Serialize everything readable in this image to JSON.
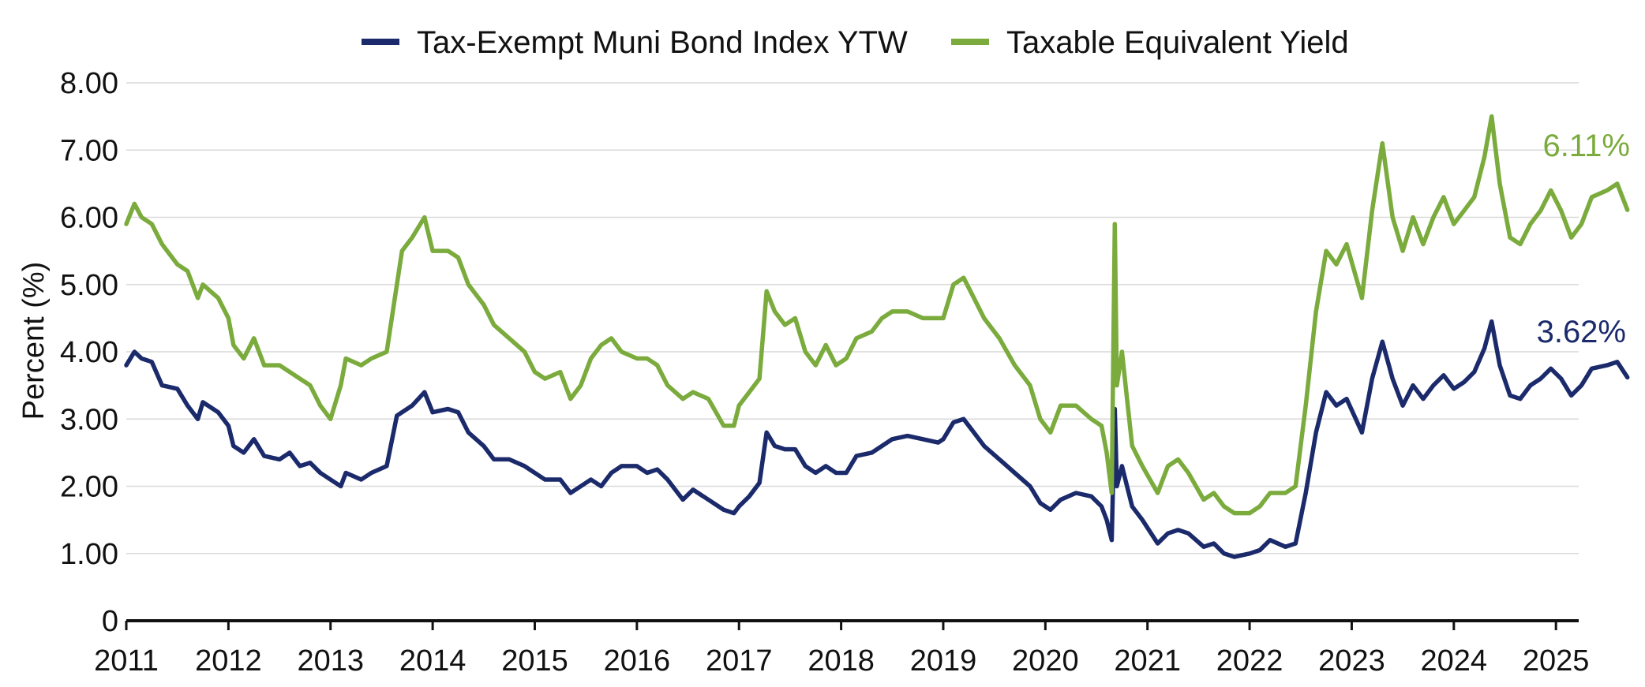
{
  "chart_data": {
    "type": "line",
    "title": "",
    "ylabel": "Percent (%)",
    "xlabel": "",
    "ylim": [
      0,
      8
    ],
    "xlim": [
      2011,
      2025.3
    ],
    "grid": true,
    "legend_position": "top-center",
    "y_ticks": [
      0,
      1,
      2,
      3,
      4,
      5,
      6,
      7,
      8
    ],
    "y_tick_labels": [
      "0",
      "1.00",
      "2.00",
      "3.00",
      "4.00",
      "5.00",
      "6.00",
      "7.00",
      "8.00"
    ],
    "x_ticks": [
      2011,
      2012,
      2013,
      2014,
      2015,
      2016,
      2017,
      2018,
      2019,
      2020,
      2021,
      2022,
      2023,
      2024,
      2025
    ],
    "x_tick_labels": [
      "2011",
      "2012",
      "2013",
      "2014",
      "2015",
      "2016",
      "2017",
      "2018",
      "2019",
      "2020",
      "2021",
      "2022",
      "2023",
      "2024",
      "2025"
    ],
    "series": [
      {
        "name": "Tax-Exempt Muni Bond Index YTW",
        "color": "#1b2a6b",
        "end_label": "3.62%",
        "points": [
          [
            2011.0,
            3.8
          ],
          [
            2011.08,
            4.0
          ],
          [
            2011.15,
            3.9
          ],
          [
            2011.25,
            3.85
          ],
          [
            2011.35,
            3.5
          ],
          [
            2011.5,
            3.45
          ],
          [
            2011.6,
            3.2
          ],
          [
            2011.7,
            3.0
          ],
          [
            2011.75,
            3.25
          ],
          [
            2011.9,
            3.1
          ],
          [
            2012.0,
            2.9
          ],
          [
            2012.05,
            2.6
          ],
          [
            2012.15,
            2.5
          ],
          [
            2012.25,
            2.7
          ],
          [
            2012.35,
            2.45
          ],
          [
            2012.5,
            2.4
          ],
          [
            2012.6,
            2.5
          ],
          [
            2012.7,
            2.3
          ],
          [
            2012.8,
            2.35
          ],
          [
            2012.9,
            2.2
          ],
          [
            2013.0,
            2.1
          ],
          [
            2013.1,
            2.0
          ],
          [
            2013.15,
            2.2
          ],
          [
            2013.3,
            2.1
          ],
          [
            2013.4,
            2.2
          ],
          [
            2013.55,
            2.3
          ],
          [
            2013.65,
            3.05
          ],
          [
            2013.7,
            3.1
          ],
          [
            2013.8,
            3.2
          ],
          [
            2013.92,
            3.4
          ],
          [
            2014.0,
            3.1
          ],
          [
            2014.15,
            3.15
          ],
          [
            2014.25,
            3.1
          ],
          [
            2014.35,
            2.8
          ],
          [
            2014.5,
            2.6
          ],
          [
            2014.6,
            2.4
          ],
          [
            2014.75,
            2.4
          ],
          [
            2014.9,
            2.3
          ],
          [
            2015.0,
            2.2
          ],
          [
            2015.1,
            2.1
          ],
          [
            2015.25,
            2.1
          ],
          [
            2015.35,
            1.9
          ],
          [
            2015.45,
            2.0
          ],
          [
            2015.55,
            2.1
          ],
          [
            2015.65,
            2.0
          ],
          [
            2015.75,
            2.2
          ],
          [
            2015.85,
            2.3
          ],
          [
            2016.0,
            2.3
          ],
          [
            2016.1,
            2.2
          ],
          [
            2016.2,
            2.25
          ],
          [
            2016.3,
            2.1
          ],
          [
            2016.45,
            1.8
          ],
          [
            2016.55,
            1.95
          ],
          [
            2016.7,
            1.8
          ],
          [
            2016.85,
            1.65
          ],
          [
            2016.95,
            1.6
          ],
          [
            2017.0,
            1.7
          ],
          [
            2017.1,
            1.85
          ],
          [
            2017.2,
            2.05
          ],
          [
            2017.27,
            2.8
          ],
          [
            2017.35,
            2.6
          ],
          [
            2017.45,
            2.55
          ],
          [
            2017.55,
            2.55
          ],
          [
            2017.65,
            2.3
          ],
          [
            2017.75,
            2.2
          ],
          [
            2017.85,
            2.3
          ],
          [
            2017.95,
            2.2
          ],
          [
            2018.05,
            2.2
          ],
          [
            2018.15,
            2.45
          ],
          [
            2018.3,
            2.5
          ],
          [
            2018.4,
            2.6
          ],
          [
            2018.5,
            2.7
          ],
          [
            2018.65,
            2.75
          ],
          [
            2018.8,
            2.7
          ],
          [
            2018.95,
            2.65
          ],
          [
            2019.0,
            2.7
          ],
          [
            2019.1,
            2.95
          ],
          [
            2019.2,
            3.0
          ],
          [
            2019.3,
            2.8
          ],
          [
            2019.4,
            2.6
          ],
          [
            2019.55,
            2.4
          ],
          [
            2019.7,
            2.2
          ],
          [
            2019.85,
            2.0
          ],
          [
            2019.95,
            1.75
          ],
          [
            2020.05,
            1.65
          ],
          [
            2020.15,
            1.8
          ],
          [
            2020.3,
            1.9
          ],
          [
            2020.45,
            1.85
          ],
          [
            2020.55,
            1.7
          ],
          [
            2020.6,
            1.5
          ],
          [
            2020.65,
            1.2
          ],
          [
            2020.68,
            3.15
          ],
          [
            2020.7,
            2.0
          ],
          [
            2020.75,
            2.3
          ],
          [
            2020.8,
            2.0
          ],
          [
            2020.85,
            1.7
          ],
          [
            2020.95,
            1.5
          ],
          [
            2021.1,
            1.15
          ],
          [
            2021.2,
            1.3
          ],
          [
            2021.3,
            1.35
          ],
          [
            2021.4,
            1.3
          ],
          [
            2021.55,
            1.1
          ],
          [
            2021.65,
            1.15
          ],
          [
            2021.75,
            1.0
          ],
          [
            2021.85,
            0.95
          ],
          [
            2022.0,
            1.0
          ],
          [
            2022.1,
            1.05
          ],
          [
            2022.2,
            1.2
          ],
          [
            2022.35,
            1.1
          ],
          [
            2022.45,
            1.15
          ],
          [
            2022.55,
            1.9
          ],
          [
            2022.65,
            2.8
          ],
          [
            2022.75,
            3.4
          ],
          [
            2022.85,
            3.2
          ],
          [
            2022.95,
            3.3
          ],
          [
            2023.1,
            2.8
          ],
          [
            2023.2,
            3.6
          ],
          [
            2023.3,
            4.15
          ],
          [
            2023.4,
            3.6
          ],
          [
            2023.5,
            3.2
          ],
          [
            2023.6,
            3.5
          ],
          [
            2023.7,
            3.3
          ],
          [
            2023.8,
            3.5
          ],
          [
            2023.9,
            3.65
          ],
          [
            2024.0,
            3.45
          ],
          [
            2024.1,
            3.55
          ],
          [
            2024.2,
            3.7
          ],
          [
            2024.3,
            4.05
          ],
          [
            2024.37,
            4.45
          ],
          [
            2024.45,
            3.8
          ],
          [
            2024.55,
            3.35
          ],
          [
            2024.65,
            3.3
          ],
          [
            2024.75,
            3.5
          ],
          [
            2024.85,
            3.6
          ],
          [
            2024.95,
            3.75
          ],
          [
            2025.05,
            3.6
          ],
          [
            2025.15,
            3.35
          ],
          [
            2025.25,
            3.5
          ],
          [
            2025.35,
            3.75
          ],
          [
            2025.5,
            3.8
          ],
          [
            2025.6,
            3.85
          ],
          [
            2025.7,
            3.62
          ]
        ]
      },
      {
        "name": "Taxable Equivalent Yield",
        "color": "#7aab3c",
        "end_label": "6.11%",
        "points": [
          [
            2011.0,
            5.9
          ],
          [
            2011.08,
            6.2
          ],
          [
            2011.15,
            6.0
          ],
          [
            2011.25,
            5.9
          ],
          [
            2011.35,
            5.6
          ],
          [
            2011.5,
            5.3
          ],
          [
            2011.6,
            5.2
          ],
          [
            2011.7,
            4.8
          ],
          [
            2011.75,
            5.0
          ],
          [
            2011.9,
            4.8
          ],
          [
            2012.0,
            4.5
          ],
          [
            2012.05,
            4.1
          ],
          [
            2012.15,
            3.9
          ],
          [
            2012.25,
            4.2
          ],
          [
            2012.35,
            3.8
          ],
          [
            2012.5,
            3.8
          ],
          [
            2012.6,
            3.7
          ],
          [
            2012.7,
            3.6
          ],
          [
            2012.8,
            3.5
          ],
          [
            2012.9,
            3.2
          ],
          [
            2013.0,
            3.0
          ],
          [
            2013.1,
            3.5
          ],
          [
            2013.15,
            3.9
          ],
          [
            2013.3,
            3.8
          ],
          [
            2013.4,
            3.9
          ],
          [
            2013.55,
            4.0
          ],
          [
            2013.65,
            5.0
          ],
          [
            2013.7,
            5.5
          ],
          [
            2013.8,
            5.7
          ],
          [
            2013.92,
            6.0
          ],
          [
            2014.0,
            5.5
          ],
          [
            2014.15,
            5.5
          ],
          [
            2014.25,
            5.4
          ],
          [
            2014.35,
            5.0
          ],
          [
            2014.5,
            4.7
          ],
          [
            2014.6,
            4.4
          ],
          [
            2014.75,
            4.2
          ],
          [
            2014.9,
            4.0
          ],
          [
            2015.0,
            3.7
          ],
          [
            2015.1,
            3.6
          ],
          [
            2015.25,
            3.7
          ],
          [
            2015.35,
            3.3
          ],
          [
            2015.45,
            3.5
          ],
          [
            2015.55,
            3.9
          ],
          [
            2015.65,
            4.1
          ],
          [
            2015.75,
            4.2
          ],
          [
            2015.85,
            4.0
          ],
          [
            2016.0,
            3.9
          ],
          [
            2016.1,
            3.9
          ],
          [
            2016.2,
            3.8
          ],
          [
            2016.3,
            3.5
          ],
          [
            2016.45,
            3.3
          ],
          [
            2016.55,
            3.4
          ],
          [
            2016.7,
            3.3
          ],
          [
            2016.85,
            2.9
          ],
          [
            2016.95,
            2.9
          ],
          [
            2017.0,
            3.2
          ],
          [
            2017.1,
            3.4
          ],
          [
            2017.2,
            3.6
          ],
          [
            2017.27,
            4.9
          ],
          [
            2017.35,
            4.6
          ],
          [
            2017.45,
            4.4
          ],
          [
            2017.55,
            4.5
          ],
          [
            2017.65,
            4.0
          ],
          [
            2017.75,
            3.8
          ],
          [
            2017.85,
            4.1
          ],
          [
            2017.95,
            3.8
          ],
          [
            2018.05,
            3.9
          ],
          [
            2018.15,
            4.2
          ],
          [
            2018.3,
            4.3
          ],
          [
            2018.4,
            4.5
          ],
          [
            2018.5,
            4.6
          ],
          [
            2018.65,
            4.6
          ],
          [
            2018.8,
            4.5
          ],
          [
            2018.95,
            4.5
          ],
          [
            2019.0,
            4.5
          ],
          [
            2019.1,
            5.0
          ],
          [
            2019.2,
            5.1
          ],
          [
            2019.3,
            4.8
          ],
          [
            2019.4,
            4.5
          ],
          [
            2019.55,
            4.2
          ],
          [
            2019.7,
            3.8
          ],
          [
            2019.85,
            3.5
          ],
          [
            2019.95,
            3.0
          ],
          [
            2020.05,
            2.8
          ],
          [
            2020.15,
            3.2
          ],
          [
            2020.3,
            3.2
          ],
          [
            2020.45,
            3.0
          ],
          [
            2020.55,
            2.9
          ],
          [
            2020.6,
            2.5
          ],
          [
            2020.65,
            1.9
          ],
          [
            2020.68,
            5.9
          ],
          [
            2020.7,
            3.5
          ],
          [
            2020.75,
            4.0
          ],
          [
            2020.8,
            3.3
          ],
          [
            2020.85,
            2.6
          ],
          [
            2020.95,
            2.3
          ],
          [
            2021.1,
            1.9
          ],
          [
            2021.2,
            2.3
          ],
          [
            2021.3,
            2.4
          ],
          [
            2021.4,
            2.2
          ],
          [
            2021.55,
            1.8
          ],
          [
            2021.65,
            1.9
          ],
          [
            2021.75,
            1.7
          ],
          [
            2021.85,
            1.6
          ],
          [
            2022.0,
            1.6
          ],
          [
            2022.1,
            1.7
          ],
          [
            2022.2,
            1.9
          ],
          [
            2022.35,
            1.9
          ],
          [
            2022.45,
            2.0
          ],
          [
            2022.55,
            3.2
          ],
          [
            2022.65,
            4.6
          ],
          [
            2022.75,
            5.5
          ],
          [
            2022.85,
            5.3
          ],
          [
            2022.95,
            5.6
          ],
          [
            2023.1,
            4.8
          ],
          [
            2023.2,
            6.1
          ],
          [
            2023.3,
            7.1
          ],
          [
            2023.4,
            6.0
          ],
          [
            2023.5,
            5.5
          ],
          [
            2023.6,
            6.0
          ],
          [
            2023.7,
            5.6
          ],
          [
            2023.8,
            6.0
          ],
          [
            2023.9,
            6.3
          ],
          [
            2024.0,
            5.9
          ],
          [
            2024.1,
            6.1
          ],
          [
            2024.2,
            6.3
          ],
          [
            2024.3,
            6.9
          ],
          [
            2024.37,
            7.5
          ],
          [
            2024.45,
            6.5
          ],
          [
            2024.55,
            5.7
          ],
          [
            2024.65,
            5.6
          ],
          [
            2024.75,
            5.9
          ],
          [
            2024.85,
            6.1
          ],
          [
            2024.95,
            6.4
          ],
          [
            2025.05,
            6.1
          ],
          [
            2025.15,
            5.7
          ],
          [
            2025.25,
            5.9
          ],
          [
            2025.35,
            6.3
          ],
          [
            2025.5,
            6.4
          ],
          [
            2025.6,
            6.5
          ],
          [
            2025.7,
            6.11
          ]
        ]
      }
    ]
  }
}
